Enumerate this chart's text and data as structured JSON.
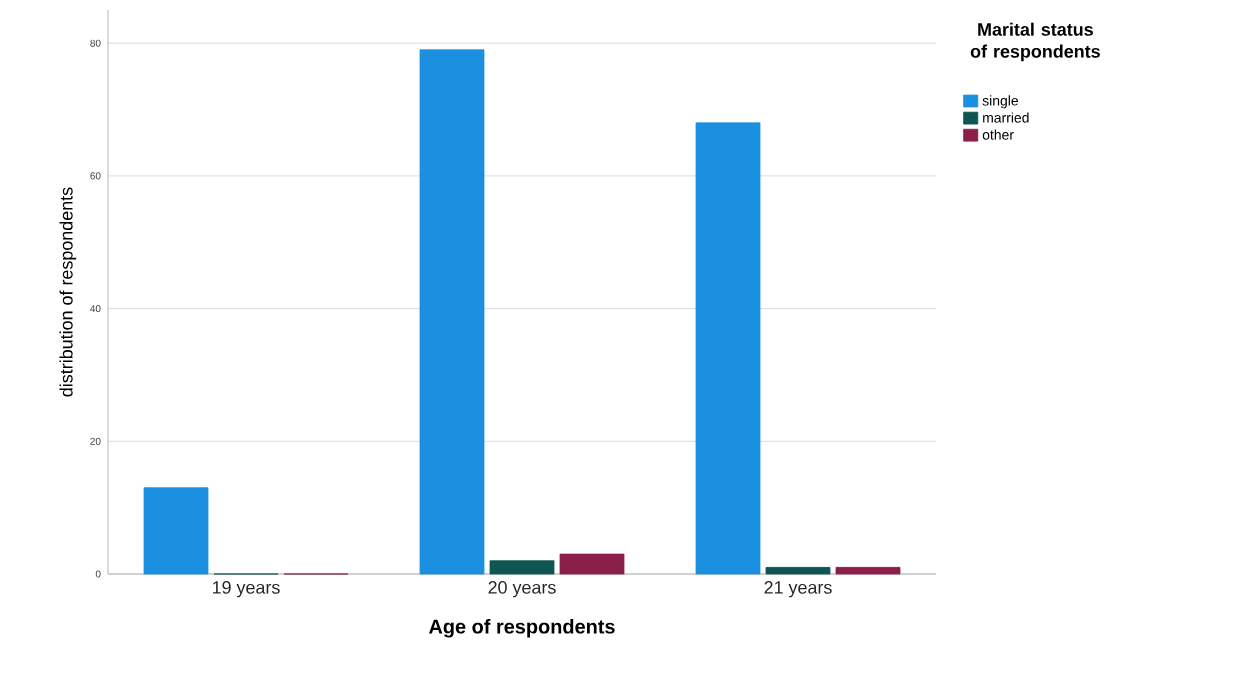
{
  "chart_data": {
    "type": "bar",
    "xlabel": "Age of respondents",
    "ylabel": "distribution of respondents",
    "legend_title": "Marital status of respondents",
    "categories": [
      "19 years",
      "20 years",
      "21 years"
    ],
    "series": [
      {
        "name": "single",
        "color": "#1b8fe0",
        "values": [
          13,
          79,
          68
        ]
      },
      {
        "name": "married",
        "color": "#0f5552",
        "values": [
          0,
          2,
          1
        ]
      },
      {
        "name": "other",
        "color": "#8c1f4a",
        "values": [
          0,
          3,
          1
        ]
      }
    ],
    "ylim": [
      0,
      85
    ],
    "yticks": [
      0,
      20,
      40,
      60,
      80
    ],
    "grid": "y",
    "legend": "top right"
  }
}
